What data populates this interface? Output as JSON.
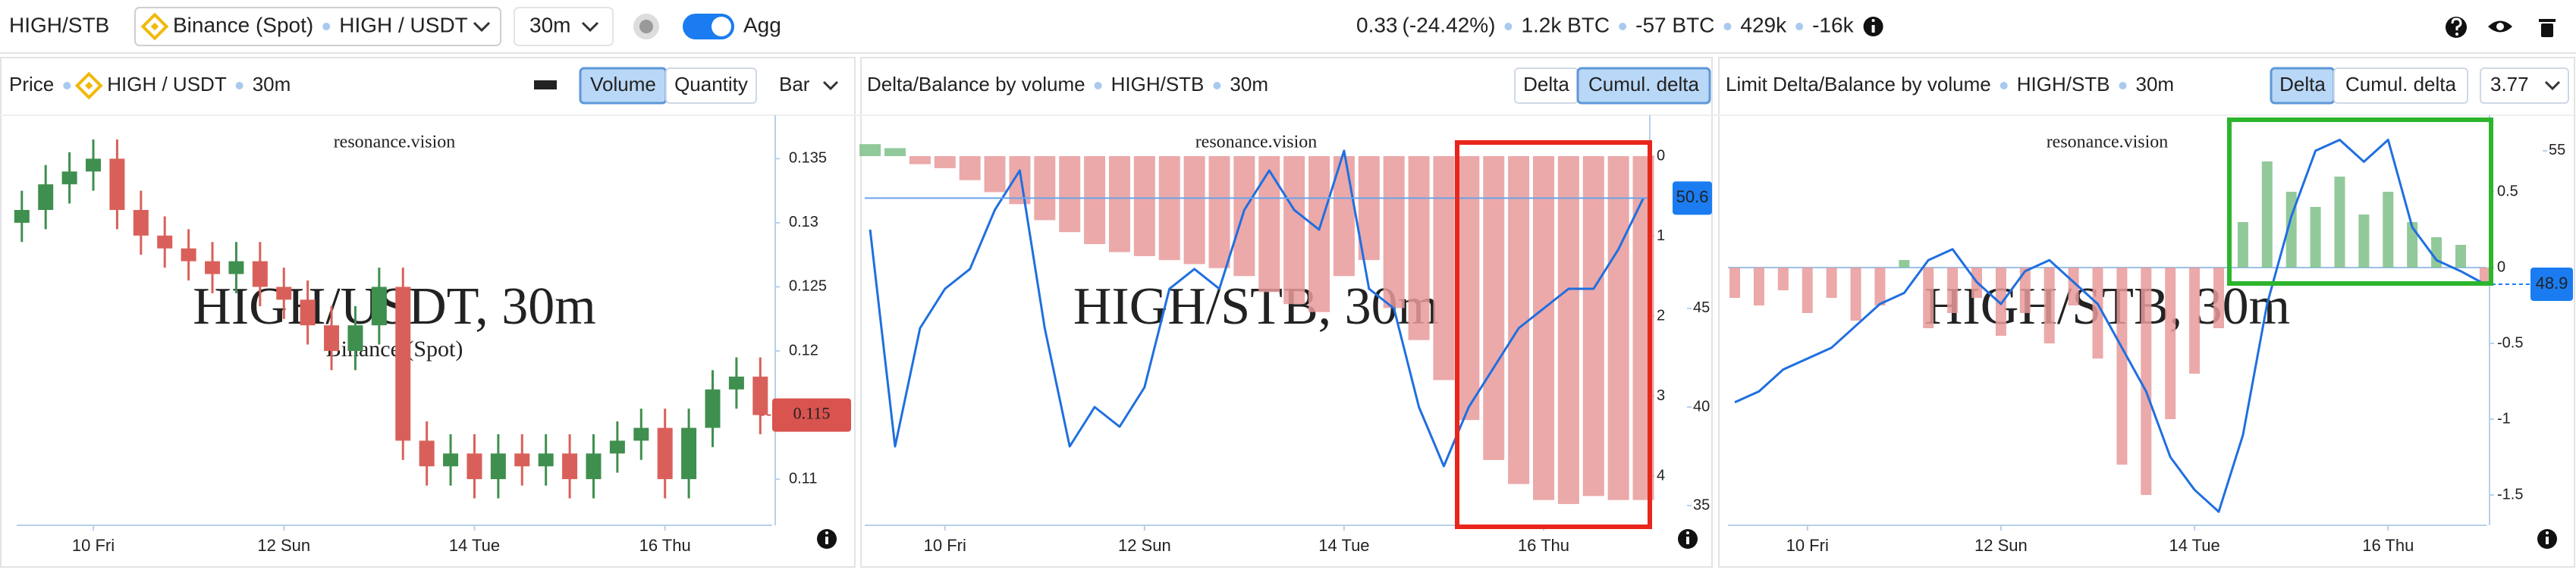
{
  "header": {
    "symbol": "HIGH/STB",
    "exchange": "Binance (Spot)",
    "pair": "HIGH / USDT",
    "interval": "30m",
    "agg": "Agg",
    "price": "0.33",
    "change": "(-24.42%)",
    "stats": [
      "1.2k BTC",
      "-57 BTC",
      "429k",
      "-16k"
    ]
  },
  "chart_data": [
    {
      "type": "candlestick",
      "title": "Price",
      "pair": "HIGH / USDT",
      "interval": "30m",
      "buttons": [
        "Volume",
        "Quantity"
      ],
      "active_button": 0,
      "dropdown": "Bar",
      "watermark": "resonance.vision",
      "watermark_title": "HIGH/USDT, 30m",
      "watermark_subtitle": "Binance (Spot)",
      "x": [
        -18,
        -12,
        -6,
        0,
        6,
        12,
        18,
        24,
        30,
        36,
        42,
        48,
        54,
        60,
        66,
        72,
        78,
        84,
        90,
        96,
        102,
        108,
        114,
        120,
        126,
        132,
        138,
        144,
        150,
        156,
        162,
        168
      ],
      "open": [
        0.13,
        0.131,
        0.133,
        0.134,
        0.135,
        0.131,
        0.129,
        0.128,
        0.127,
        0.126,
        0.127,
        0.125,
        0.124,
        0.122,
        0.12,
        0.122,
        0.125,
        0.113,
        0.111,
        0.112,
        0.11,
        0.112,
        0.111,
        0.112,
        0.11,
        0.112,
        0.113,
        0.114,
        0.11,
        0.114,
        0.117,
        0.118
      ],
      "high": [
        0.1325,
        0.1345,
        0.1355,
        0.1365,
        0.1365,
        0.1325,
        0.1305,
        0.1295,
        0.1285,
        0.1285,
        0.1285,
        0.1265,
        0.1255,
        0.1235,
        0.1235,
        0.1265,
        0.1265,
        0.1145,
        0.1135,
        0.1135,
        0.1135,
        0.1135,
        0.1135,
        0.1135,
        0.1135,
        0.1145,
        0.1155,
        0.1155,
        0.1155,
        0.1185,
        0.1195,
        0.1195
      ],
      "low": [
        0.1285,
        0.1295,
        0.1315,
        0.1325,
        0.1295,
        0.1275,
        0.1265,
        0.1255,
        0.1245,
        0.1245,
        0.1235,
        0.1225,
        0.1205,
        0.1185,
        0.1185,
        0.1205,
        0.1115,
        0.1095,
        0.1095,
        0.1085,
        0.1085,
        0.1095,
        0.1095,
        0.1085,
        0.1085,
        0.1105,
        0.1115,
        0.1085,
        0.1085,
        0.1125,
        0.1155,
        0.1135
      ],
      "close": [
        0.131,
        0.133,
        0.134,
        0.135,
        0.131,
        0.129,
        0.128,
        0.127,
        0.126,
        0.127,
        0.125,
        0.124,
        0.122,
        0.12,
        0.122,
        0.125,
        0.113,
        0.111,
        0.112,
        0.11,
        0.112,
        0.111,
        0.112,
        0.11,
        0.112,
        0.113,
        0.114,
        0.11,
        0.114,
        0.117,
        0.118,
        0.115
      ],
      "up_color": "#3f8f4f",
      "down_color": "#d9605a",
      "xlim": [
        -19.3,
        171
      ],
      "xticks": [
        {
          "value": 0,
          "label": "10 Fri"
        },
        {
          "value": 48,
          "label": "12 Sun"
        },
        {
          "value": 96,
          "label": "14 Tue"
        },
        {
          "value": 144,
          "label": "16 Thu"
        }
      ],
      "ylim": [
        0.1064,
        0.1378
      ],
      "yticks": [
        0.11,
        0.115,
        0.12,
        0.125,
        0.13,
        0.135
      ],
      "last_value": 0.115,
      "last_color": "#d9534f"
    },
    {
      "type": "delta",
      "title": "Delta/Balance by volume",
      "pair": "HIGH/STB",
      "interval": "30m",
      "buttons": [
        "Delta",
        "Cumul. delta"
      ],
      "active_button": 1,
      "watermark": "resonance.vision",
      "watermark_title": "HIGH/STB, 30m",
      "x": [
        -18,
        -12,
        -6,
        0,
        6,
        12,
        18,
        24,
        30,
        36,
        42,
        48,
        54,
        60,
        66,
        72,
        78,
        84,
        90,
        96,
        102,
        108,
        114,
        120,
        126,
        132,
        138,
        144,
        150,
        156,
        162,
        168
      ],
      "series": [
        {
          "type": "bar",
          "color": "#e89a9a",
          "negative_color": "#7fbf8a",
          "values": [
            -0.15,
            -0.1,
            0.1,
            0.15,
            0.3,
            0.45,
            0.6,
            0.8,
            0.95,
            1.1,
            1.2,
            1.25,
            1.3,
            1.35,
            1.4,
            1.5,
            1.7,
            1.85,
            1.95,
            1.5,
            1.3,
            1.9,
            2.3,
            2.8,
            3.3,
            3.8,
            4.1,
            4.3,
            4.35,
            4.25,
            4.3,
            4.3
          ]
        },
        {
          "type": "line",
          "axis": "y2",
          "color": "#1f6fe0",
          "values": [
            49,
            38,
            44,
            46,
            47,
            50,
            52,
            44,
            38,
            40,
            39,
            41,
            46,
            47,
            46,
            50,
            52,
            50,
            49,
            53,
            46,
            45,
            40,
            37,
            40,
            42,
            44,
            45,
            46,
            46,
            48,
            50.6
          ]
        }
      ],
      "xlim": [
        -19.3,
        169
      ],
      "xticks": [
        {
          "value": 0,
          "label": "10 Fri"
        },
        {
          "value": 48,
          "label": "12 Sun"
        },
        {
          "value": 96,
          "label": "14 Tue"
        },
        {
          "value": 144,
          "label": "16 Thu"
        }
      ],
      "ylim": [
        4.616,
        -0.417
      ],
      "yticks": [
        0,
        1,
        2,
        3,
        4
      ],
      "y2lim": [
        34,
        54.42
      ],
      "y2ticks": [
        35,
        40,
        45
      ],
      "last_value": 50.6,
      "last_color": "#1a7cf0",
      "last_line": "full"
    },
    {
      "type": "delta",
      "title": "Limit Delta/Balance by volume",
      "pair": "HIGH/STB",
      "interval": "30m",
      "buttons": [
        "Delta",
        "Cumul. delta"
      ],
      "active_button": 0,
      "dropdown": "3.77",
      "watermark": "resonance.vision",
      "watermark_title": "HIGH/STB, 30m",
      "x": [
        -18,
        -12,
        -6,
        0,
        6,
        12,
        18,
        24,
        30,
        36,
        42,
        48,
        54,
        60,
        66,
        72,
        78,
        84,
        90,
        96,
        102,
        108,
        114,
        120,
        126,
        132,
        138,
        144,
        150,
        156,
        162,
        168
      ],
      "series": [
        {
          "type": "bar",
          "color": "#7fbf8a",
          "negative_color": "#e89a9a",
          "values": [
            -0.2,
            -0.25,
            -0.15,
            -0.3,
            -0.2,
            -0.35,
            -0.25,
            0.05,
            -0.4,
            -0.3,
            -0.2,
            -0.45,
            -0.3,
            -0.5,
            -0.25,
            -0.6,
            -1.3,
            -1.5,
            -1.0,
            -0.7,
            -0.4,
            0.3,
            0.7,
            0.5,
            0.4,
            0.6,
            0.35,
            0.5,
            0.3,
            0.2,
            0.15,
            -0.1
          ]
        },
        {
          "type": "line",
          "axis": "y2",
          "color": "#1f6fe0",
          "values": [
            43.5,
            44,
            45,
            45.5,
            46,
            47,
            48,
            48.5,
            50,
            50.5,
            49,
            48,
            49.5,
            50,
            49,
            48,
            46,
            44,
            41,
            39.5,
            38.5,
            42,
            48,
            52,
            55,
            55.5,
            54.5,
            55.5,
            51.5,
            50,
            49.5,
            48.9
          ]
        }
      ],
      "xlim": [
        -19.7,
        168.4
      ],
      "xticks": [
        {
          "value": 0,
          "label": "10 Fri"
        },
        {
          "value": 48,
          "label": "12 Sun"
        },
        {
          "value": 96,
          "label": "14 Tue"
        },
        {
          "value": 144,
          "label": "16 Thu"
        }
      ],
      "ylim": [
        -1.7,
        0.955
      ],
      "yticks": [
        0.5,
        0,
        -0.5,
        -1,
        -1.5
      ],
      "y2lim": [
        37.88,
        56.28
      ],
      "y2ticks": [
        55
      ],
      "last_value": 48.9,
      "last_color": "#1a7cf0",
      "last_line": "tail"
    }
  ]
}
